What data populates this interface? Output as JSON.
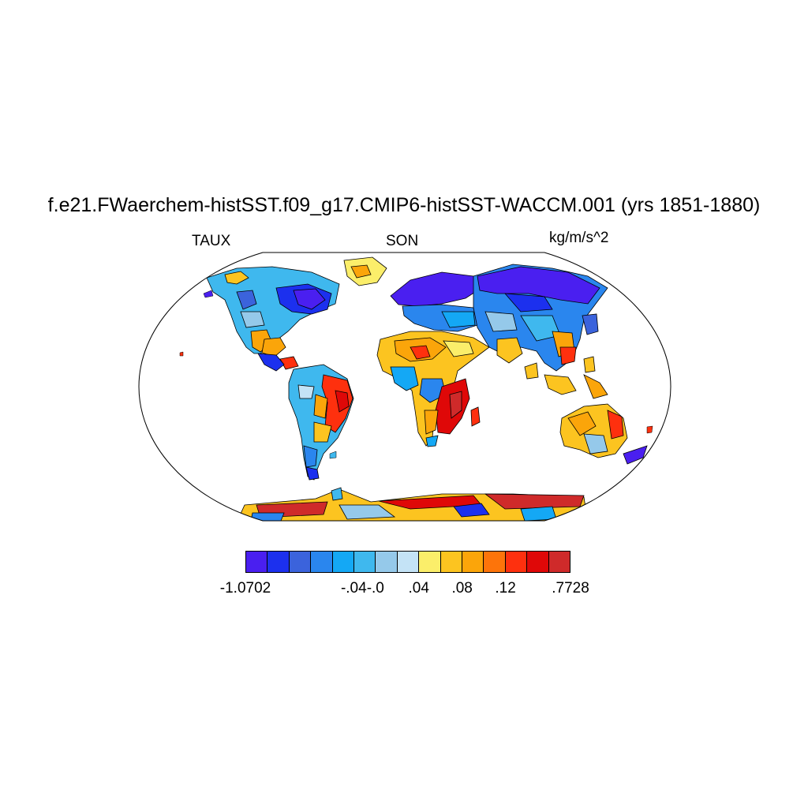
{
  "title": "f.e21.FWaerchem-histSST.f09_g17.CMIP6-histSST-WACCM.001 (yrs 1851-1880)",
  "left_label": "TAUX",
  "center_label": "SON",
  "right_label": "kg/m/s^2",
  "map": {
    "projection": "Robinson",
    "field": "TAUX",
    "ocean_fill": "#ffffff",
    "coastline_color": "#000000",
    "high_regions": [
      "southern Africa",
      "eastern Brazil",
      "India/southeast Asia",
      "Antarctic coast",
      "western Australia"
    ],
    "low_regions": [
      "northern Siberia",
      "eastern Canada",
      "Patagonia",
      "western Europe"
    ]
  },
  "colorbar": {
    "colors": [
      "#4a1ff0",
      "#1c30ee",
      "#3b63dc",
      "#2a86ee",
      "#14a8f5",
      "#3fb8ee",
      "#95c9ea",
      "#c4e3f6",
      "#fbee6a",
      "#fcc420",
      "#fba50a",
      "#fd740a",
      "#fe300e",
      "#df0808",
      "#cf2a2a"
    ],
    "labels": [
      {
        "text": "-1.0702",
        "boundary": 0
      },
      {
        "text": "-.04",
        "boundary": 5
      },
      {
        "text": "-.0",
        "boundary": 6
      },
      {
        "text": ".04",
        "boundary": 8
      },
      {
        "text": ".08",
        "boundary": 10
      },
      {
        "text": ".12",
        "boundary": 12
      },
      {
        "text": ".7728",
        "boundary": 15
      }
    ]
  }
}
